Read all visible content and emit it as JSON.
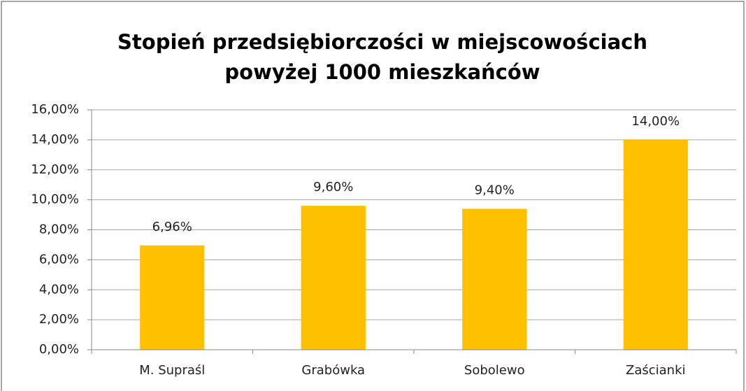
{
  "chart_data": {
    "type": "bar",
    "title": [
      "Stopień przedsiębiorczości w miejscowościach",
      "powyżej 1000 mieszkańców"
    ],
    "categories": [
      "M. Supraśl",
      "Grabówka",
      "Sobolewo",
      "Zaścianki"
    ],
    "values": [
      6.96,
      9.6,
      9.4,
      14
    ],
    "value_labels": [
      "6,96%",
      "9,60%",
      "9,40%",
      "14,00%"
    ],
    "color": "#ffc000",
    "ylim": [
      0,
      16
    ],
    "yticks": [
      {
        "value": 0,
        "label": "0,00%"
      },
      {
        "value": 2,
        "label": "2,00%"
      },
      {
        "value": 4,
        "label": "4,00%"
      },
      {
        "value": 6,
        "label": "6,00%"
      },
      {
        "value": 8,
        "label": "8,00%"
      },
      {
        "value": 10,
        "label": "10,00%"
      },
      {
        "value": 12,
        "label": "12,00%"
      },
      {
        "value": 14,
        "label": "14,00%"
      },
      {
        "value": 16,
        "label": "16,00%"
      }
    ],
    "grid": true
  }
}
